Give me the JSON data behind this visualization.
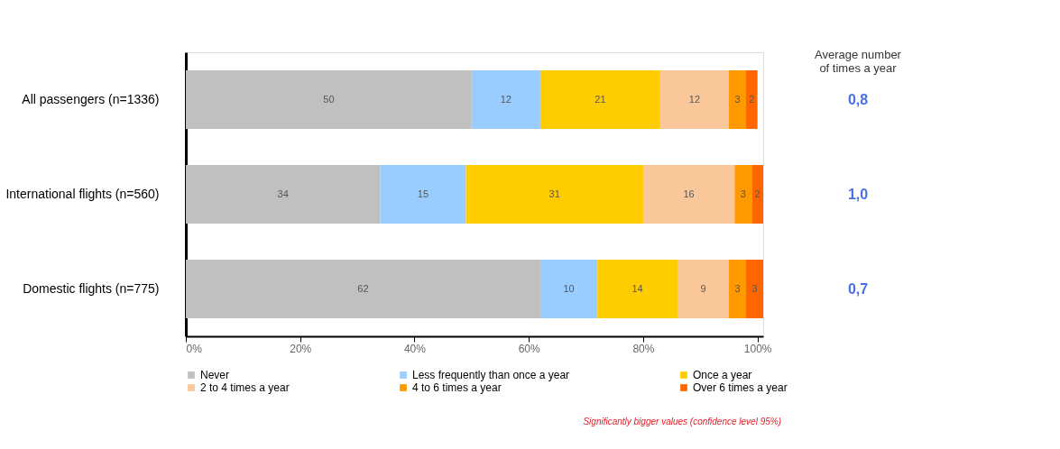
{
  "chart_data": {
    "type": "bar",
    "orientation": "horizontal",
    "stacked": true,
    "data_labels": true,
    "legend": "bottom",
    "grid": false,
    "categories": [
      "All passengers (n=1336)",
      "International flights (n=560)",
      "Domestic flights (n=775)"
    ],
    "series": [
      {
        "name": "Never",
        "color": "#c0c0c0",
        "values": [
          50,
          34,
          62
        ]
      },
      {
        "name": "Less frequently than once a year",
        "color": "#99ccff",
        "values": [
          12,
          15,
          10
        ]
      },
      {
        "name": "Once a year",
        "color": "#ffcc00",
        "values": [
          21,
          31,
          14
        ]
      },
      {
        "name": "2 to 4 times a year",
        "color": "#fac79b",
        "values": [
          12,
          16,
          9
        ]
      },
      {
        "name": "4 to 6 times a year",
        "color": "#ff9900",
        "values": [
          3,
          3,
          3
        ]
      },
      {
        "name": "Over 6 times a year",
        "color": "#ff6600",
        "values": [
          2,
          2,
          3
        ]
      }
    ],
    "xlim": [
      0,
      101
    ],
    "xticks": [
      {
        "value": 0,
        "label": "0%"
      },
      {
        "value": 20,
        "label": "20%"
      },
      {
        "value": 40,
        "label": "40%"
      },
      {
        "value": 60,
        "label": "60%"
      },
      {
        "value": 80,
        "label": "80%"
      },
      {
        "value": 100,
        "label": "100%"
      }
    ],
    "annotations": [
      "Average number of times a year",
      "0,8",
      "1,0",
      "0,7",
      "Significantly bigger values (confidence level 95%)"
    ]
  }
}
